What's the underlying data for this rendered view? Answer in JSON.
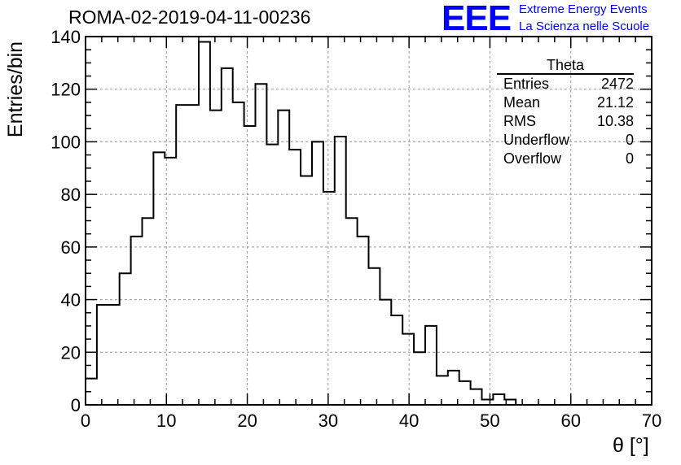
{
  "header": {
    "title": "ROMA-02-2019-04-11-00236",
    "logo_text": "EEE",
    "logo_line1": "Extreme Energy Events",
    "logo_line2": "La Scienza nelle Scuole"
  },
  "stats": {
    "title": "Theta",
    "rows": [
      {
        "label": "Entries",
        "value": "2472"
      },
      {
        "label": "Mean",
        "value": "21.12"
      },
      {
        "label": "RMS",
        "value": "10.38"
      },
      {
        "label": "Underflow",
        "value": "0"
      },
      {
        "label": "Overflow",
        "value": "0"
      }
    ]
  },
  "chart_data": {
    "type": "bar",
    "title": "ROMA-02-2019-04-11-00236",
    "xlabel": "θ [°]",
    "ylabel": "Entries/bin",
    "xlim": [
      0,
      70
    ],
    "ylim": [
      0,
      140
    ],
    "bin_width": 1.4,
    "values": [
      10,
      38,
      38,
      50,
      64,
      71,
      96,
      94,
      114,
      114,
      138,
      112,
      128,
      115,
      106,
      122,
      99,
      112,
      97,
      87,
      100,
      81,
      102,
      71,
      64,
      52,
      40,
      34,
      27,
      20,
      30,
      11,
      13,
      9,
      6,
      2,
      4,
      2,
      0,
      0,
      0,
      0,
      0,
      0,
      0,
      0,
      0,
      0,
      0,
      0
    ],
    "x_ticks": [
      0,
      10,
      20,
      30,
      40,
      50,
      60,
      70
    ],
    "y_ticks": [
      0,
      20,
      40,
      60,
      80,
      100,
      120,
      140
    ],
    "grid": true,
    "line_color": "#000000"
  }
}
